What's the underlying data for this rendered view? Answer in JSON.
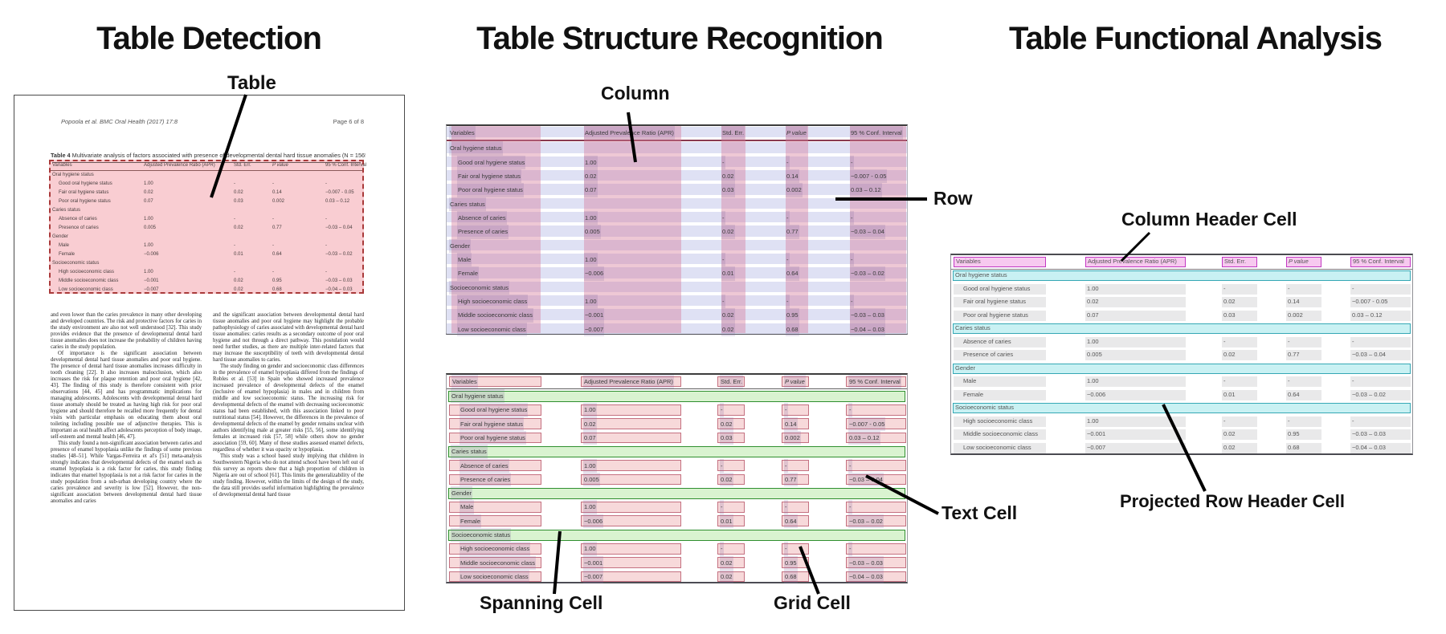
{
  "titles": {
    "panel1": "Table Detection",
    "panel2": "Table Structure Recognition",
    "panel3": "Table Functional Analysis"
  },
  "annotations": {
    "table": "Table",
    "column": "Column",
    "row": "Row",
    "spanning_cell": "Spanning Cell",
    "text_cell": "Text Cell",
    "grid_cell": "Grid Cell",
    "column_header_cell": "Column Header Cell",
    "projected_row_header_cell": "Projected Row Header Cell"
  },
  "document": {
    "header_left": "Popoola et al. BMC Oral Health (2017) 17:8",
    "header_right": "Page 6 of 8",
    "caption_label": "Table 4",
    "caption_text": "Multivariate analysis of factors associated with presence of developmental dental hard tissue anomalies (N = 1565)",
    "body_left": [
      "and even lower than the caries prevalence in many other developing and developed countries. The risk and protective factors for caries in the study environment are also not well understood [32]. This study provides evidence that the presence of developmental dental hard tissue anomalies does not increase the probability of children having caries in the study population.",
      "Of importance is the significant association between developmental dental hard tissue anomalies and poor oral hygiene. The presence of dental hard tissue anomalies increases difficulty in tooth cleaning [22]. It also increases malocclusion, which also increases the risk for plaque retention and poor oral hygiene [42, 43]. The finding of this study is therefore consistent with prior observations [44, 45] and has programmatic implications for managing adolescents. Adolescents with developmental dental hard tissue anomaly should be treated as having high risk for poor oral hygiene and should therefore be recalled more frequently for dental visits with particular emphasis on educating them about oral toileting including possible use of adjunctive therapies. This is important as oral health affect adolescents perception of body image, self-esteem and mental health [46, 47].",
      "This study found a non-significant association between caries and presence of enamel hypoplasia unlike the findings of some previous studies [48–51]. While Vargas-Ferreira et al's [51] meta-analysis strongly indicates that developmental defects of the enamel such as enamel hypoplasia is a risk factor for caries, this study finding indicates that enamel hypoplasia is not a risk factor for caries in the study population from a sub-urban developing country where the caries prevalence and severity is low [52]. However, the non-significant association between developmental dental hard tissue anomalies and caries"
    ],
    "body_right": [
      "and the significant association between developmental dental hard tissue anomalies and poor oral hygiene may highlight the probable pathophysiology of caries associated with developmental dental hard tissue anomalies: caries results as a secondary outcome of poor oral hygiene and not through a direct pathway. This postulation would need further studies, as there are multiple inter-related factors that may increase the susceptibility of teeth with developmental dental hard tissue anomalies to caries.",
      "The study finding on gender and socioeconomic class differences in the prevalence of enamel hypoplasia differed from the findings of Robles et al. [53] in Spain who showed increased prevalence increased prevalence of developmental defects of the enamel (inclusive of enamel hypoplasia) in males and in children from middle and low socioeconomic status. The increasing risk for developmental defects of the enamel with decreasing socioeconomic status had been established, with this association linked to poor nutritional status [54]. However, the differences in the prevalence of developmental defects of the enamel by gender remains unclear with authors identifying male at greater risks [55, 56], some identifying females at increased risk [57, 58] while others show no gender association [59, 60]. Many of these studies assessed enamel defects, regardless of whether it was opacity or hypoplasia.",
      "This study was a school based study implying that children in Southwestern Nigeria who do not attend school have been left out of this survey as reports show that a high proportion of children in Nigeria are out of school [61]. This limits the generalizability of the study finding. However, within the limits of the design of the study, the data still provides useful information highlighting the prevalence of developmental dental hard tissue"
    ]
  },
  "table": {
    "columns": [
      "Variables",
      "Adjusted Prevalence Ratio (APR)",
      "Std. Err.",
      "P value",
      "95 % Conf. Interval"
    ],
    "rows": [
      {
        "type": "section",
        "cells": [
          "Oral hygiene status",
          "",
          "",
          "",
          ""
        ]
      },
      {
        "type": "data",
        "cells": [
          "Good oral hygiene status",
          "1.00",
          "-",
          "-",
          "-"
        ]
      },
      {
        "type": "data",
        "cells": [
          "Fair oral hygiene status",
          "0.02",
          "0.02",
          "0.14",
          "−0.007 - 0.05"
        ]
      },
      {
        "type": "data",
        "cells": [
          "Poor oral hygiene status",
          "0.07",
          "0.03",
          "0.002",
          "0.03 – 0.12"
        ]
      },
      {
        "type": "section",
        "cells": [
          "Caries status",
          "",
          "",
          "",
          ""
        ]
      },
      {
        "type": "data",
        "cells": [
          "Absence of caries",
          "1.00",
          "-",
          "-",
          "-"
        ]
      },
      {
        "type": "data",
        "cells": [
          "Presence of caries",
          "0.005",
          "0.02",
          "0.77",
          "−0.03 – 0.04"
        ]
      },
      {
        "type": "section",
        "cells": [
          "Gender",
          "",
          "",
          "",
          ""
        ]
      },
      {
        "type": "data",
        "cells": [
          "Male",
          "1.00",
          "-",
          "-",
          "-"
        ]
      },
      {
        "type": "data",
        "cells": [
          "Female",
          "−0.006",
          "0.01",
          "0.64",
          "−0.03 – 0.02"
        ]
      },
      {
        "type": "section",
        "cells": [
          "Socioeconomic status",
          "",
          "",
          "",
          ""
        ]
      },
      {
        "type": "data",
        "cells": [
          "High socioeconomic class",
          "1.00",
          "-",
          "-",
          "-"
        ]
      },
      {
        "type": "data",
        "cells": [
          "Middle socioeconomic class",
          "−0.001",
          "0.02",
          "0.95",
          "−0.03 – 0.03"
        ]
      },
      {
        "type": "data",
        "cells": [
          "Low socioeconomic class",
          "−0.007",
          "0.02",
          "0.68",
          "−0.04 – 0.03"
        ]
      }
    ]
  },
  "colors": {
    "detection_fill": "#f9cdd2",
    "detection_border": "#a93a3a",
    "row_band": "#dfe1f4",
    "column_stripe": "#d67c9a",
    "text_cell_fill": "#f7d9da",
    "text_cell_border": "#c47080",
    "spanning_cell_fill": "#d9f3d0",
    "spanning_cell_border": "#2f8f2f",
    "column_header_fill": "#f7c9ef",
    "column_header_border": "#c238c2",
    "projected_row_header_fill": "#c9f1f3",
    "projected_row_header_border": "#35a8b5",
    "gray_cell_fill": "#e9e9ea",
    "annotation_line": "#000000"
  }
}
